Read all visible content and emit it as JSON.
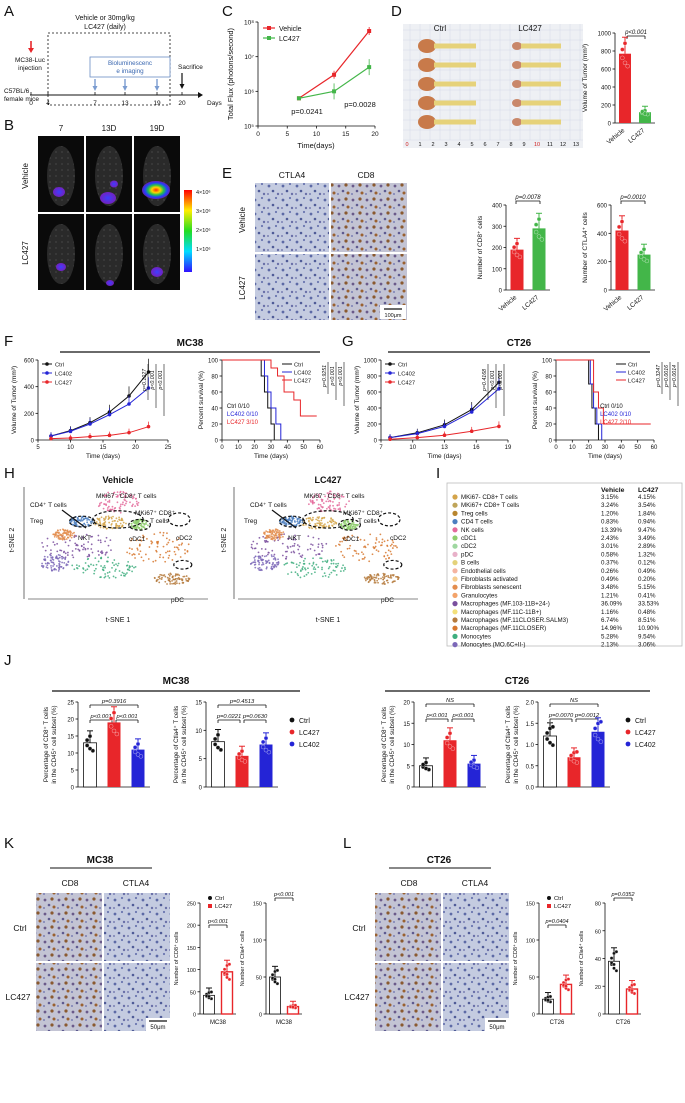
{
  "panels": {
    "A": {
      "letter": "A",
      "treat_label_1": "Vehicle or 30mg/kg",
      "treat_label_2": "LC427 (daily)",
      "injection_1": "MC38-Luc",
      "injection_2": "injection",
      "mice_1": "C57BL/6",
      "mice_2": "female mice",
      "imaging_1": "Bioluminescenc",
      "imaging_2": "e imaging",
      "sacrifice": "Sacrifice",
      "ticks": [
        "0",
        "4",
        "7",
        "13",
        "19",
        "20"
      ],
      "days_label": "Days"
    },
    "B": {
      "letter": "B",
      "timepoints": [
        "7",
        "13D",
        "19D"
      ],
      "row_vehicle": "Vehicle",
      "row_lc427": "LC427",
      "scale_labels": [
        "4×10⁶",
        "3×10⁶",
        "2×10⁶",
        "1×10⁶"
      ]
    },
    "C": {
      "letter": "C",
      "ylabel": "Total Flux (photons/second)",
      "xlabel": "Time(days)",
      "legend": [
        "Vehicle",
        "LC427"
      ],
      "yticks": [
        "10⁸",
        "10⁷",
        "10⁶",
        "10⁵"
      ],
      "xticks": [
        "0",
        "5",
        "10",
        "15",
        "20"
      ],
      "p1": "p=0.0241",
      "p2": "p=0.0028"
    },
    "D": {
      "letter": "D",
      "ctrl": "Ctrl",
      "lc427": "LC427",
      "ruler": [
        "0",
        "1",
        "2",
        "3",
        "4",
        "5",
        "6",
        "7",
        "8",
        "9",
        "10",
        "11",
        "12",
        "13"
      ],
      "ylabel": "Volume of Tumor (mm³)",
      "yticks": [
        "1000",
        "800",
        "600",
        "400",
        "200",
        "0"
      ],
      "p": "p<0.001",
      "xcats": [
        "Vehicle",
        "LC427"
      ]
    },
    "E": {
      "letter": "E",
      "col1": "CTLA4",
      "col2": "CD8",
      "row1": "Vehicle",
      "row2": "LC427",
      "scale": "100μm",
      "cd8_ylabel": "Number of CD8⁺ cells",
      "cd8_yticks": [
        "400",
        "300",
        "200",
        "100",
        "0"
      ],
      "cd8_p": "p=0.0078",
      "ctla4_ylabel": "Number of CTLA4⁺ cells",
      "ctla4_yticks": [
        "600",
        "400",
        "200",
        "0"
      ],
      "ctla4_p": "p=0.0010",
      "xcats": [
        "Vehicle",
        "LC427"
      ]
    },
    "F": {
      "letter": "F",
      "header": "MC38",
      "vol_ylabel": "Volume of Tumor (mm³)",
      "vol_xlabel": "Time (days)",
      "vol_yticks": [
        "600",
        "400",
        "200",
        "0"
      ],
      "vol_xticks": [
        "5",
        "10",
        "15",
        "20",
        "25"
      ],
      "legend": [
        "Ctrl",
        "LC402",
        "LC427"
      ],
      "vol_p": [
        "p=0.1027",
        "p<0.001",
        "p<0.001"
      ],
      "surv_ylabel": "Percent survival (%)",
      "surv_xlabel": "Time (days)",
      "surv_yticks": [
        "100",
        "80",
        "60",
        "40",
        "20",
        "0"
      ],
      "surv_xticks": [
        "0",
        "10",
        "20",
        "30",
        "40",
        "50",
        "60"
      ],
      "surv_p": [
        "p=0.9251",
        "p<0.001",
        "p<0.001"
      ],
      "surv_text": [
        "Ctrl 0/10",
        "LC402 0/10",
        "LC427 3/10"
      ]
    },
    "G": {
      "letter": "G",
      "header": "CT26",
      "vol_ylabel": "Volume of Tumor (mm³)",
      "vol_xlabel": "Time (days)",
      "vol_yticks": [
        "1000",
        "800",
        "600",
        "400",
        "200",
        "0"
      ],
      "vol_xticks": [
        "7",
        "10",
        "13",
        "16",
        "19"
      ],
      "legend": [
        "Ctrl",
        "LC402",
        "LC427"
      ],
      "vol_p": [
        "p=0.4168",
        "p<0.001",
        "p<0.001"
      ],
      "surv_ylabel": "Percent survival (%)",
      "surv_xlabel": "Time (days)",
      "surv_yticks": [
        "100",
        "80",
        "60",
        "40",
        "20",
        "0"
      ],
      "surv_xticks": [
        "0",
        "10",
        "20",
        "30",
        "40",
        "50",
        "60"
      ],
      "surv_p": [
        "p=0.3247",
        "p=0.0016",
        "p=0.0014"
      ],
      "surv_text": [
        "Ctrl 0/10",
        "LC402 0/10",
        "LC427 2/10"
      ]
    },
    "H": {
      "letter": "H",
      "title_vehicle": "Vehicle",
      "title_lc427": "LC427",
      "xlabel": "t-SNE 1",
      "ylabel": "t-SNE 2",
      "labels": [
        "CD4⁺ T cells",
        "MKi67⁻ CD8⁺ T cells",
        "MKi67⁺ CD8⁺",
        "T cells",
        "Treg",
        "NKT",
        "cDC1",
        "cDC2",
        "pDC"
      ]
    },
    "I": {
      "letter": "I",
      "col_vehicle": "Vehicle",
      "col_lc427": "LC427",
      "rows": [
        {
          "name": "MKi67- CD8+ T cells",
          "vehicle": "3.15%",
          "lc427": "4.15%",
          "color": "#d4a44a"
        },
        {
          "name": "MKi67+ CD8+ T cells",
          "vehicle": "3.24%",
          "lc427": "3.54%",
          "color": "#bfa55a"
        },
        {
          "name": "Treg cells",
          "vehicle": "1.20%",
          "lc427": "1.84%",
          "color": "#b8862f"
        },
        {
          "name": "CD4 T cells",
          "vehicle": "0.83%",
          "lc427": "0.94%",
          "color": "#4c7fc0"
        },
        {
          "name": "NK cells",
          "vehicle": "13.39%",
          "lc427": "9.47%",
          "color": "#e46a9b"
        },
        {
          "name": "cDC1",
          "vehicle": "2.43%",
          "lc427": "3.49%",
          "color": "#8fce6e"
        },
        {
          "name": "cDC2",
          "vehicle": "3.01%",
          "lc427": "2.89%",
          "color": "#9fd7a0"
        },
        {
          "name": "pDC",
          "vehicle": "0.58%",
          "lc427": "1.32%",
          "color": "#e8b1c9"
        },
        {
          "name": "B cells",
          "vehicle": "0.37%",
          "lc427": "0.12%",
          "color": "#e4d27a"
        },
        {
          "name": "Endothelial cells",
          "vehicle": "0.26%",
          "lc427": "0.49%",
          "color": "#f5b4a0"
        },
        {
          "name": "Fibroblasts activated",
          "vehicle": "0.49%",
          "lc427": "0.20%",
          "color": "#f6cd8d"
        },
        {
          "name": "Fibroblasts senescent",
          "vehicle": "3.48%",
          "lc427": "5.15%",
          "color": "#e38d4e"
        },
        {
          "name": "Granulocytes",
          "vehicle": "1.21%",
          "lc427": "0.41%",
          "color": "#f3a36a"
        },
        {
          "name": "Macrophages (MF.103-11B+24-)",
          "vehicle": "36.09%",
          "lc427": "33.53%",
          "color": "#7a4f9e"
        },
        {
          "name": "Macrophages (MF.11C-11B+)",
          "vehicle": "1.16%",
          "lc427": "0.48%",
          "color": "#f3e07a"
        },
        {
          "name": "Macrophages (MF.11CLOSER.SALM3)",
          "vehicle": "6.74%",
          "lc427": "8.51%",
          "color": "#b57a3c"
        },
        {
          "name": "Macrophages (MF.11CLOSER)",
          "vehicle": "14.96%",
          "lc427": "10.90%",
          "color": "#d7782f"
        },
        {
          "name": "Monocytes",
          "vehicle": "5.28%",
          "lc427": "9.54%",
          "color": "#3fae7f"
        },
        {
          "name": "Monocytes (MO.6C+II-)",
          "vehicle": "2.13%",
          "lc427": "3.06%",
          "color": "#7c68b8"
        }
      ]
    },
    "J": {
      "letter": "J",
      "mc38": "MC38",
      "ct26": "CT26",
      "cd8_ylabel_1": "Percentage of CD8⁺ T cells",
      "cd8_ylabel_2": "in the CD45⁺ cell subset (%)",
      "ctla4_ylabel_1": "Percentage of Ctla4⁺ T cells",
      "ctla4_ylabel_2": "in the CD45⁺ cell subset (%)",
      "legend": [
        "Ctrl",
        "LC427",
        "LC402"
      ],
      "mc38_cd8_yticks": [
        "25",
        "20",
        "15",
        "10",
        "5",
        "0"
      ],
      "mc38_ctla4_yticks": [
        "15",
        "10",
        "5",
        "0"
      ],
      "ct26_cd8_yticks": [
        "20",
        "15",
        "10",
        "5",
        "0"
      ],
      "ct26_ctla4_yticks": [
        "2.0",
        "1.5",
        "1.0",
        "0.5",
        "0.0"
      ],
      "mc38_cd8_p": [
        "p=0.3916",
        "p<0.001",
        "p<0.001"
      ],
      "mc38_ctla4_p": [
        "p=0.4513",
        "p=0.0221",
        "p=0.0630"
      ],
      "ct26_cd8_p": [
        "NS",
        "p<0.001",
        "p<0.001"
      ],
      "ct26_ctla4_p": [
        "NS",
        "p=0.0070",
        "p=0.0012"
      ]
    },
    "K": {
      "letter": "K",
      "header": "MC38",
      "col1": "CD8",
      "col2": "CTLA4",
      "row1": "Ctrl",
      "row2": "LC427",
      "scale": "50μm",
      "legend": [
        "Ctrl",
        "LC427"
      ],
      "cd8_ylabel": "Number of CD8⁺ cells",
      "cd8_yticks": [
        "250",
        "200",
        "150",
        "100",
        "50",
        "0"
      ],
      "cd8_p": "p<0.001",
      "ctla4_ylabel": "Number of Ctla4⁺ cells",
      "ctla4_yticks": [
        "150",
        "100",
        "50",
        "0"
      ],
      "ctla4_p": "p<0.001",
      "xcat": "MC38"
    },
    "L": {
      "letter": "L",
      "header": "CT26",
      "col1": "CD8",
      "col2": "CTLA4",
      "row1": "Ctrl",
      "row2": "LC427",
      "scale": "50μm",
      "legend": [
        "Ctrl",
        "LC427"
      ],
      "cd8_ylabel": "Number of CD8⁺ cells",
      "cd8_yticks": [
        "150",
        "100",
        "50",
        "0"
      ],
      "cd8_p": "p=0.0404",
      "ctla4_ylabel": "Number of Ctla4⁺ cells",
      "ctla4_yticks": [
        "80",
        "60",
        "40",
        "20",
        "0"
      ],
      "ctla4_p": "p=0.0352",
      "xcat": "CT26"
    }
  },
  "chart_data": [
    {
      "id": "C",
      "type": "line",
      "ylog": true,
      "x": [
        7,
        13,
        19
      ],
      "series": [
        {
          "name": "Vehicle",
          "color": "#e8262a",
          "values": [
            630000,
            3000000,
            55000000
          ]
        },
        {
          "name": "LC427",
          "color": "#43b649",
          "values": [
            630000,
            1000000,
            5000000
          ]
        }
      ],
      "ylim": [
        100000,
        100000000
      ],
      "xlim": [
        0,
        20
      ]
    },
    {
      "id": "D",
      "type": "bar",
      "categories": [
        "Vehicle",
        "LC427"
      ],
      "values": [
        770,
        120
      ],
      "colors": [
        "#e8262a",
        "#43b649"
      ],
      "ylim": [
        0,
        1000
      ]
    },
    {
      "id": "E-CD8",
      "type": "bar",
      "categories": [
        "Vehicle",
        "LC427"
      ],
      "values": [
        190,
        290
      ],
      "colors": [
        "#e8262a",
        "#43b649"
      ],
      "ylim": [
        0,
        400
      ]
    },
    {
      "id": "E-CTLA4",
      "type": "bar",
      "categories": [
        "Vehicle",
        "LC427"
      ],
      "values": [
        420,
        250
      ],
      "colors": [
        "#e8262a",
        "#43b649"
      ],
      "ylim": [
        0,
        600
      ]
    },
    {
      "id": "F-vol",
      "type": "line",
      "x": [
        7,
        10,
        13,
        16,
        19,
        22
      ],
      "series": [
        {
          "name": "Ctrl",
          "color": "#111111",
          "values": [
            30,
            70,
            130,
            210,
            330,
            510
          ]
        },
        {
          "name": "LC402",
          "color": "#2424d6",
          "values": [
            30,
            65,
            120,
            190,
            270,
            390
          ]
        },
        {
          "name": "LC427",
          "color": "#e8262a",
          "values": [
            10,
            15,
            25,
            35,
            55,
            100
          ]
        }
      ],
      "ylim": [
        0,
        600
      ],
      "xlim": [
        5,
        25
      ]
    },
    {
      "id": "F-surv",
      "type": "line",
      "series": [
        {
          "name": "Ctrl",
          "color": "#111111",
          "x": [
            0,
            22,
            24,
            26,
            28,
            30,
            32
          ],
          "values": [
            100,
            100,
            80,
            60,
            40,
            20,
            0
          ]
        },
        {
          "name": "LC402",
          "color": "#2424d6",
          "x": [
            0,
            24,
            26,
            28,
            30,
            33,
            36
          ],
          "values": [
            100,
            100,
            80,
            60,
            40,
            20,
            0
          ]
        },
        {
          "name": "LC427",
          "color": "#e8262a",
          "x": [
            0,
            27,
            30,
            34,
            38,
            44,
            48,
            58
          ],
          "values": [
            100,
            100,
            90,
            80,
            60,
            50,
            30,
            30
          ]
        }
      ],
      "ylim": [
        0,
        100
      ],
      "xlim": [
        0,
        60
      ]
    },
    {
      "id": "G-vol",
      "type": "line",
      "x": [
        7,
        10,
        13,
        16,
        19
      ],
      "series": [
        {
          "name": "Ctrl",
          "color": "#111111",
          "values": [
            30,
            90,
            190,
            380,
            720
          ]
        },
        {
          "name": "LC402",
          "color": "#2424d6",
          "values": [
            30,
            80,
            170,
            350,
            640
          ]
        },
        {
          "name": "LC427",
          "color": "#e8262a",
          "values": [
            10,
            30,
            60,
            110,
            170
          ]
        }
      ],
      "ylim": [
        0,
        1000
      ],
      "xlim": [
        6,
        20
      ]
    },
    {
      "id": "G-surv",
      "type": "line",
      "series": [
        {
          "name": "Ctrl",
          "color": "#111111",
          "x": [
            0,
            18,
            20,
            22,
            24,
            26
          ],
          "values": [
            100,
            100,
            70,
            40,
            20,
            0
          ]
        },
        {
          "name": "LC402",
          "color": "#2424d6",
          "x": [
            0,
            19,
            21,
            23,
            25,
            28
          ],
          "values": [
            100,
            100,
            70,
            40,
            20,
            0
          ]
        },
        {
          "name": "LC427",
          "color": "#e8262a",
          "x": [
            0,
            20,
            23,
            26,
            29,
            58
          ],
          "values": [
            100,
            100,
            60,
            40,
            20,
            20
          ]
        }
      ],
      "ylim": [
        0,
        100
      ],
      "xlim": [
        0,
        60
      ]
    },
    {
      "id": "J-MC38-CD8",
      "type": "bar",
      "categories": [
        "Ctrl",
        "LC427",
        "LC402"
      ],
      "values": [
        13,
        19,
        11
      ],
      "colors": [
        "#111111",
        "#e8262a",
        "#2424d6"
      ],
      "ylim": [
        0,
        25
      ]
    },
    {
      "id": "J-MC38-CTLA4",
      "type": "bar",
      "categories": [
        "Ctrl",
        "LC427",
        "LC402"
      ],
      "values": [
        8,
        5.5,
        7.5
      ],
      "colors": [
        "#111111",
        "#e8262a",
        "#2424d6"
      ],
      "ylim": [
        0,
        15
      ]
    },
    {
      "id": "J-CT26-CD8",
      "type": "bar",
      "categories": [
        "Ctrl",
        "LC427",
        "LC402"
      ],
      "values": [
        5,
        11,
        5.5
      ],
      "colors": [
        "#111111",
        "#e8262a",
        "#2424d6"
      ],
      "ylim": [
        0,
        20
      ]
    },
    {
      "id": "J-CT26-CTLA4",
      "type": "bar",
      "categories": [
        "Ctrl",
        "LC427",
        "LC402"
      ],
      "values": [
        1.2,
        0.7,
        1.3
      ],
      "colors": [
        "#111111",
        "#e8262a",
        "#2424d6"
      ],
      "ylim": [
        0,
        2
      ]
    },
    {
      "id": "K-CD8",
      "type": "bar",
      "categories": [
        "Ctrl",
        "LC427"
      ],
      "values": [
        42,
        95
      ],
      "colors": [
        "#111111",
        "#e8262a"
      ],
      "ylim": [
        0,
        250
      ]
    },
    {
      "id": "K-CTLA4",
      "type": "bar",
      "categories": [
        "Ctrl",
        "LC427"
      ],
      "values": [
        50,
        10
      ],
      "colors": [
        "#111111",
        "#e8262a"
      ],
      "ylim": [
        0,
        150
      ]
    },
    {
      "id": "L-CD8",
      "type": "bar",
      "categories": [
        "Ctrl",
        "LC427"
      ],
      "values": [
        20,
        40
      ],
      "colors": [
        "#111111",
        "#e8262a"
      ],
      "ylim": [
        0,
        150
      ]
    },
    {
      "id": "L-CTLA4",
      "type": "bar",
      "categories": [
        "Ctrl",
        "LC427"
      ],
      "values": [
        38,
        18
      ],
      "colors": [
        "#111111",
        "#e8262a"
      ],
      "ylim": [
        0,
        80
      ]
    }
  ]
}
